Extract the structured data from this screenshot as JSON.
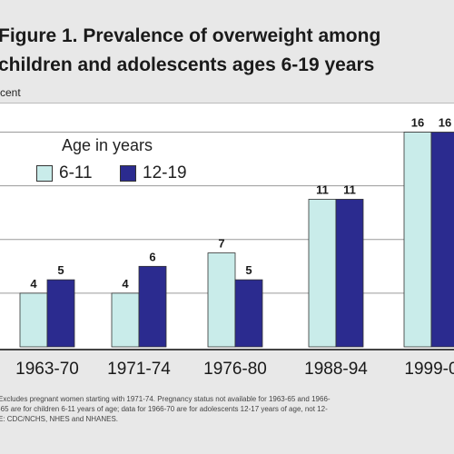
{
  "chart_data": {
    "type": "bar",
    "title_lines": [
      "Figure 1. Prevalence of overweight among",
      "children and adolescents ages 6-19 years"
    ],
    "ylabel": "cent",
    "ylim": [
      0,
      18
    ],
    "grid": true,
    "legend_title": "Age in years",
    "legend_position": "top-left",
    "categories": [
      "1963-70",
      "1971-74",
      "1976-80",
      "1988-94",
      "1999-0"
    ],
    "series": [
      {
        "name": "6-11",
        "color": "#c9ecea",
        "values": [
          4,
          4,
          7,
          11,
          16
        ]
      },
      {
        "name": "12-19",
        "color": "#2b2b8f",
        "values": [
          5,
          6,
          5,
          11,
          16
        ]
      }
    ]
  },
  "notes": [
    "Excludes pregnant women starting with 1971-74.  Pregnancy status not available for 1963-65 and 1966-",
    "-65 are for children 6-11 years of age; data for 1966-70 are for adolescents 12-17 years of age, not 12-",
    "E: CDC/NCHS, NHES and NHANES."
  ]
}
